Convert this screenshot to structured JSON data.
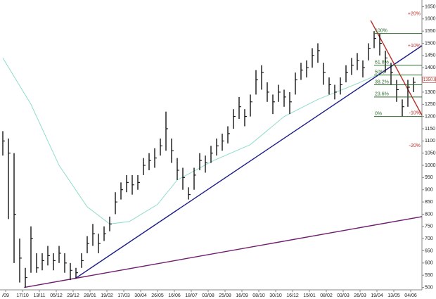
{
  "chart_data": {
    "type": "ohlc",
    "ylim": [
      490,
      1660
    ],
    "yticks": [
      500,
      550,
      600,
      650,
      700,
      750,
      800,
      850,
      900,
      950,
      1000,
      1050,
      1100,
      1150,
      1200,
      1250,
      1300,
      1350,
      1400,
      1450,
      1500,
      1550,
      1600,
      1650
    ],
    "xlim": [
      -0.5,
      74.5
    ],
    "xticks": [
      {
        "value": 0.5,
        "label": "/09"
      },
      {
        "value": 3.5,
        "label": "17/10"
      },
      {
        "value": 6.5,
        "label": "13/11"
      },
      {
        "value": 9.5,
        "label": "05/12"
      },
      {
        "value": 12.5,
        "label": "29/12"
      },
      {
        "value": 15.5,
        "label": "28/01"
      },
      {
        "value": 18.5,
        "label": "19/02"
      },
      {
        "value": 21.5,
        "label": "17/03"
      },
      {
        "value": 24.5,
        "label": "30/04"
      },
      {
        "value": 27.5,
        "label": "26/05"
      },
      {
        "value": 30.5,
        "label": "16/06"
      },
      {
        "value": 33.5,
        "label": "18/07"
      },
      {
        "value": 36.5,
        "label": "03/08"
      },
      {
        "value": 39.5,
        "label": "25/08"
      },
      {
        "value": 42.5,
        "label": "16/09"
      },
      {
        "value": 45.5,
        "label": "08/10"
      },
      {
        "value": 48.5,
        "label": "30/10"
      },
      {
        "value": 51.5,
        "label": "16/12"
      },
      {
        "value": 54.5,
        "label": "15/01"
      },
      {
        "value": 57.5,
        "label": "08/02"
      },
      {
        "value": 60.5,
        "label": "03/03"
      },
      {
        "value": 63.5,
        "label": "26/03"
      },
      {
        "value": 66.5,
        "label": "19/04"
      },
      {
        "value": 69.5,
        "label": "13/05"
      },
      {
        "value": 72.5,
        "label": "04/06"
      }
    ],
    "price_color": "#000000",
    "high": [
      1140,
      1110,
      1050,
      700,
      580,
      750,
      640,
      640,
      670,
      640,
      670,
      640,
      600,
      580,
      640,
      710,
      760,
      720,
      750,
      790,
      890,
      930,
      960,
      960,
      960,
      1030,
      1050,
      1070,
      1110,
      1220,
      1110,
      1030,
      990,
      910,
      990,
      1050,
      1040,
      1080,
      1110,
      1130,
      1160,
      1230,
      1280,
      1230,
      1290,
      1390,
      1410,
      1340,
      1290,
      1330,
      1310,
      1300,
      1380,
      1420,
      1430,
      1480,
      1500,
      1420,
      1360,
      1330,
      1360,
      1410,
      1440,
      1460,
      1430,
      1500,
      1550,
      1540,
      1470,
      1420,
      1350,
      1270,
      1350,
      1360
    ],
    "low": [
      1040,
      780,
      600,
      520,
      500,
      560,
      560,
      570,
      590,
      570,
      600,
      560,
      530,
      537,
      580,
      640,
      670,
      640,
      690,
      730,
      800,
      860,
      890,
      880,
      900,
      960,
      980,
      990,
      1040,
      1060,
      1010,
      940,
      900,
      860,
      900,
      980,
      970,
      1010,
      1040,
      1060,
      1090,
      1150,
      1190,
      1160,
      1200,
      1290,
      1310,
      1260,
      1210,
      1260,
      1240,
      1210,
      1290,
      1350,
      1360,
      1400,
      1420,
      1330,
      1290,
      1270,
      1290,
      1340,
      1370,
      1390,
      1360,
      1430,
      1480,
      1450,
      1380,
      1330,
      1260,
      1200,
      1240,
      1300
    ],
    "close": [
      1100,
      1050,
      800,
      620,
      540,
      700,
      580,
      610,
      630,
      610,
      640,
      600,
      570,
      560,
      610,
      680,
      720,
      680,
      720,
      760,
      850,
      900,
      930,
      920,
      930,
      1000,
      1020,
      1030,
      1080,
      1150,
      1060,
      980,
      950,
      880,
      960,
      1020,
      1010,
      1050,
      1080,
      1100,
      1130,
      1200,
      1240,
      1200,
      1260,
      1350,
      1380,
      1300,
      1260,
      1300,
      1280,
      1260,
      1350,
      1390,
      1400,
      1450,
      1470,
      1380,
      1330,
      1300,
      1330,
      1380,
      1410,
      1430,
      1400,
      1480,
      1520,
      1500,
      1440,
      1380,
      1310,
      1240,
      1320,
      1340
    ],
    "lines": [
      {
        "color": "#8fdccb",
        "x": [
          0,
          5,
          10,
          15,
          19,
          22.5,
          27.5,
          31,
          37.5,
          44,
          50,
          56,
          62.5,
          67.5
        ],
        "values": [
          1440,
          1250,
          1000,
          830,
          760,
          770,
          840,
          940,
          1020,
          1085,
          1200,
          1270,
          1330,
          1380
        ]
      },
      {
        "color": "#1c1c8a",
        "x": [
          12.9,
          74.5
        ],
        "values": [
          537,
          1490
        ]
      },
      {
        "color": "#6e1c6e",
        "x": [
          3.8,
          74.5
        ],
        "values": [
          500,
          790
        ]
      },
      {
        "color": "#b8302a",
        "x": [
          65.4,
          74.5
        ],
        "values": [
          1593,
          1205
        ]
      }
    ],
    "fib": {
      "color": "#2e6e2e",
      "x": [
        66,
        74.5
      ],
      "levels": [
        {
          "label": "100%",
          "value": 1540
        },
        {
          "label": "61.8%",
          "value": 1410
        },
        {
          "label": "50%",
          "value": 1370
        },
        {
          "label": "38.2%",
          "value": 1330
        },
        {
          "label": "23.6%",
          "value": 1280
        },
        {
          "label": "0%",
          "value": 1200
        }
      ]
    },
    "annotations": {
      "color": "#b8302a",
      "items": [
        {
          "label": "+20%",
          "value": 1620
        },
        {
          "label": "+10%",
          "value": 1490
        },
        {
          "label": "-10%",
          "value": 1215
        },
        {
          "label": "-20%",
          "value": 1080
        }
      ]
    },
    "last_price": 1350.8
  }
}
